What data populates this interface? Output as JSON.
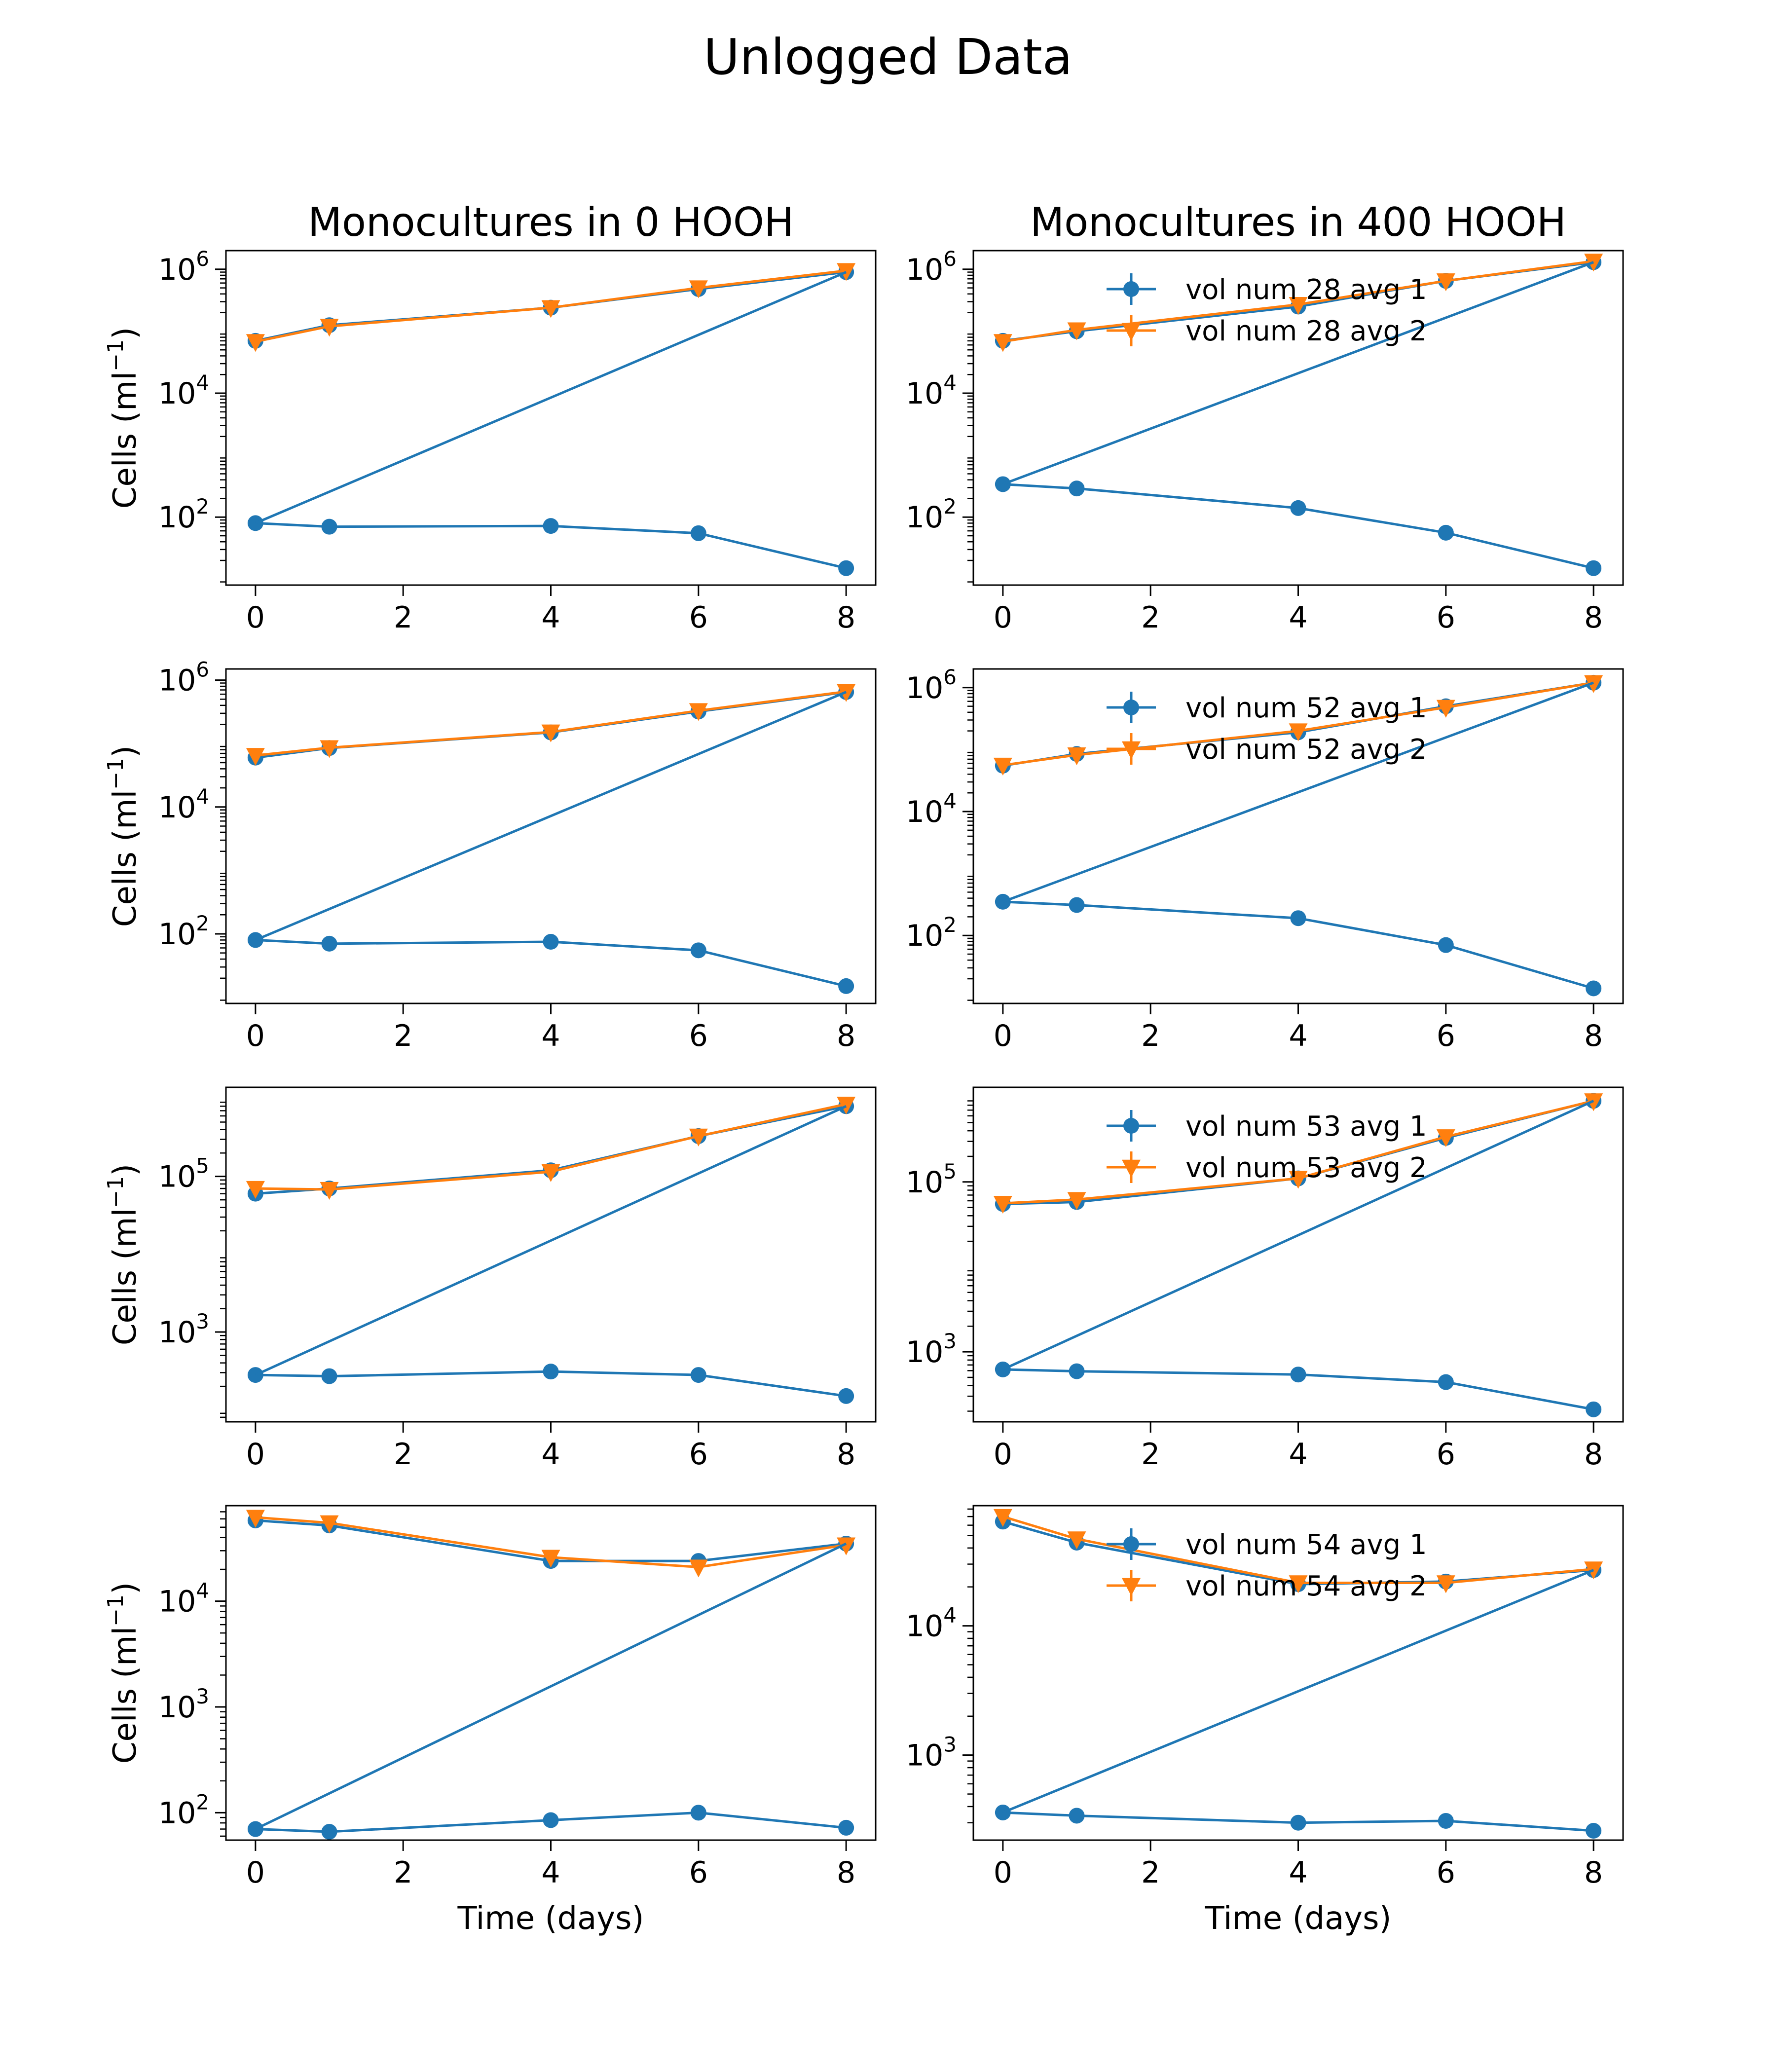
{
  "figure": {
    "title": "Unlogged Data",
    "col_titles": [
      "Monocultures in 0 HOOH",
      "Monocultures in 400 HOOH"
    ],
    "xlabel": "Time (days)",
    "ylabel": "Cells (ml⁻¹)",
    "colors": {
      "avg1": "#1f77b4",
      "avg2": "#ff7f0e"
    }
  },
  "chart_data": [
    {
      "type": "line",
      "row": 0,
      "col": 0,
      "title": "Monocultures in 0 HOOH",
      "xlabel": "",
      "ylabel": "Cells (ml⁻¹)",
      "yscale": "log",
      "xlim": [
        -0.4,
        8.4
      ],
      "ylim": [
        8,
        2000000
      ],
      "xticks": [
        "0",
        "2",
        "4",
        "6",
        "8"
      ],
      "yticks": [
        "10^2",
        "10^4",
        "10^6"
      ],
      "legend": null,
      "x": [
        0,
        1,
        4,
        6,
        8
      ],
      "series": [
        {
          "key": "avg1a",
          "values": [
            80,
            70,
            72,
            55,
            15
          ]
        },
        {
          "key": "avg1b",
          "values": [
            70000,
            125000,
            240000,
            480000,
            900000
          ]
        },
        {
          "key": "avg2",
          "values": [
            68000,
            120000,
            240000,
            500000,
            950000
          ]
        }
      ]
    },
    {
      "type": "line",
      "row": 0,
      "col": 1,
      "title": "Monocultures in 400 HOOH",
      "xlabel": "",
      "ylabel": "",
      "yscale": "log",
      "xlim": [
        -0.4,
        8.4
      ],
      "ylim": [
        8,
        2000000
      ],
      "xticks": [
        "0",
        "2",
        "4",
        "6",
        "8"
      ],
      "yticks": [
        "10^2",
        "10^4",
        "10^6"
      ],
      "legend": {
        "position": "upper-center",
        "labels": [
          "vol num 28  avg 1",
          "vol num 28  avg 2"
        ]
      },
      "x": [
        0,
        1,
        4,
        6,
        8
      ],
      "series": [
        {
          "key": "avg1a",
          "values": [
            340,
            290,
            140,
            56,
            15
          ]
        },
        {
          "key": "avg1b",
          "values": [
            70000,
            100000,
            250000,
            650000,
            1300000
          ]
        },
        {
          "key": "avg2",
          "values": [
            68000,
            105000,
            270000,
            650000,
            1350000
          ]
        }
      ]
    },
    {
      "type": "line",
      "row": 1,
      "col": 0,
      "title": "",
      "xlabel": "",
      "ylabel": "Cells (ml⁻¹)",
      "yscale": "log",
      "xlim": [
        -0.4,
        8.4
      ],
      "ylim": [
        8,
        1500000
      ],
      "xticks": [
        "0",
        "2",
        "4",
        "6",
        "8"
      ],
      "yticks": [
        "10^2",
        "10^4",
        "10^6"
      ],
      "legend": null,
      "x": [
        0,
        1,
        4,
        6,
        8
      ],
      "series": [
        {
          "key": "avg1a",
          "values": [
            80,
            70,
            75,
            55,
            15
          ]
        },
        {
          "key": "avg1b",
          "values": [
            60000,
            85000,
            150000,
            320000,
            650000
          ]
        },
        {
          "key": "avg2",
          "values": [
            65000,
            86000,
            152000,
            330000,
            660000
          ]
        }
      ]
    },
    {
      "type": "line",
      "row": 1,
      "col": 1,
      "title": "",
      "xlabel": "",
      "ylabel": "",
      "yscale": "log",
      "xlim": [
        -0.4,
        8.4
      ],
      "ylim": [
        8,
        2000000
      ],
      "xticks": [
        "0",
        "2",
        "4",
        "6",
        "8"
      ],
      "yticks": [
        "10^2",
        "10^4",
        "10^6"
      ],
      "legend": {
        "position": "upper-center",
        "labels": [
          "vol num 52  avg 1",
          "vol num 52  avg 2"
        ]
      },
      "x": [
        0,
        1,
        4,
        6,
        8
      ],
      "series": [
        {
          "key": "avg1a",
          "values": [
            350,
            310,
            190,
            70,
            14
          ]
        },
        {
          "key": "avg1b",
          "values": [
            55000,
            85000,
            190000,
            500000,
            1200000
          ]
        },
        {
          "key": "avg2",
          "values": [
            56000,
            82000,
            200000,
            480000,
            1200000
          ]
        }
      ]
    },
    {
      "type": "line",
      "row": 2,
      "col": 0,
      "title": "",
      "xlabel": "",
      "ylabel": "Cells (ml⁻¹)",
      "yscale": "log",
      "xlim": [
        -0.4,
        8.4
      ],
      "ylim": [
        70,
        1400000
      ],
      "xticks": [
        "0",
        "2",
        "4",
        "6",
        "8"
      ],
      "yticks": [
        "10^3",
        "10^5"
      ],
      "legend": null,
      "x": [
        0,
        1,
        4,
        6,
        8
      ],
      "series": [
        {
          "key": "avg1a",
          "values": [
            280,
            270,
            310,
            280,
            150
          ]
        },
        {
          "key": "avg1b",
          "values": [
            60000,
            70000,
            120000,
            330000,
            800000
          ]
        },
        {
          "key": "avg2",
          "values": [
            70000,
            68000,
            115000,
            330000,
            850000
          ]
        }
      ]
    },
    {
      "type": "line",
      "row": 2,
      "col": 1,
      "title": "",
      "xlabel": "",
      "ylabel": "",
      "yscale": "log",
      "xlim": [
        -0.4,
        8.4
      ],
      "ylim": [
        150,
        1300000
      ],
      "xticks": [
        "0",
        "2",
        "4",
        "6",
        "8"
      ],
      "yticks": [
        "10^3",
        "10^5"
      ],
      "legend": {
        "position": "upper-center",
        "labels": [
          "vol num 53  avg 1",
          "vol num 53  avg 2"
        ]
      },
      "x": [
        0,
        1,
        4,
        6,
        8
      ],
      "series": [
        {
          "key": "avg1a",
          "values": [
            620,
            590,
            540,
            440,
            210
          ]
        },
        {
          "key": "avg1b",
          "values": [
            55000,
            58000,
            110000,
            330000,
            900000
          ]
        },
        {
          "key": "avg2",
          "values": [
            56000,
            62000,
            110000,
            340000,
            900000
          ]
        }
      ]
    },
    {
      "type": "line",
      "row": 3,
      "col": 0,
      "title": "",
      "xlabel": "Time (days)",
      "ylabel": "Cells (ml⁻¹)",
      "yscale": "log",
      "xlim": [
        -0.4,
        8.4
      ],
      "ylim": [
        55,
        80000
      ],
      "xticks": [
        "0",
        "2",
        "4",
        "6",
        "8"
      ],
      "yticks": [
        "10^2",
        "10^3",
        "10^4"
      ],
      "legend": null,
      "x": [
        0,
        1,
        4,
        6,
        8
      ],
      "series": [
        {
          "key": "avg1a",
          "values": [
            70,
            66,
            85,
            100,
            72
          ]
        },
        {
          "key": "avg1b",
          "values": [
            58000,
            52000,
            24000,
            24000,
            35000
          ]
        },
        {
          "key": "avg2",
          "values": [
            62000,
            55000,
            26000,
            21000,
            34000
          ]
        }
      ]
    },
    {
      "type": "line",
      "row": 3,
      "col": 1,
      "title": "",
      "xlabel": "Time (days)",
      "ylabel": "",
      "yscale": "log",
      "xlim": [
        -0.4,
        8.4
      ],
      "ylim": [
        220,
        85000
      ],
      "xticks": [
        "0",
        "2",
        "4",
        "6",
        "8"
      ],
      "yticks": [
        "10^3",
        "10^4"
      ],
      "legend": {
        "position": "upper-center",
        "labels": [
          "vol num 54  avg 1",
          "vol num 54  avg 2"
        ]
      },
      "x": [
        0,
        1,
        4,
        6,
        8
      ],
      "series": [
        {
          "key": "avg1a",
          "values": [
            360,
            340,
            300,
            310,
            260
          ]
        },
        {
          "key": "avg1b",
          "values": [
            64000,
            44000,
            21000,
            22000,
            27000
          ]
        },
        {
          "key": "avg2",
          "values": [
            70000,
            47000,
            21500,
            21500,
            27500
          ]
        }
      ]
    }
  ]
}
